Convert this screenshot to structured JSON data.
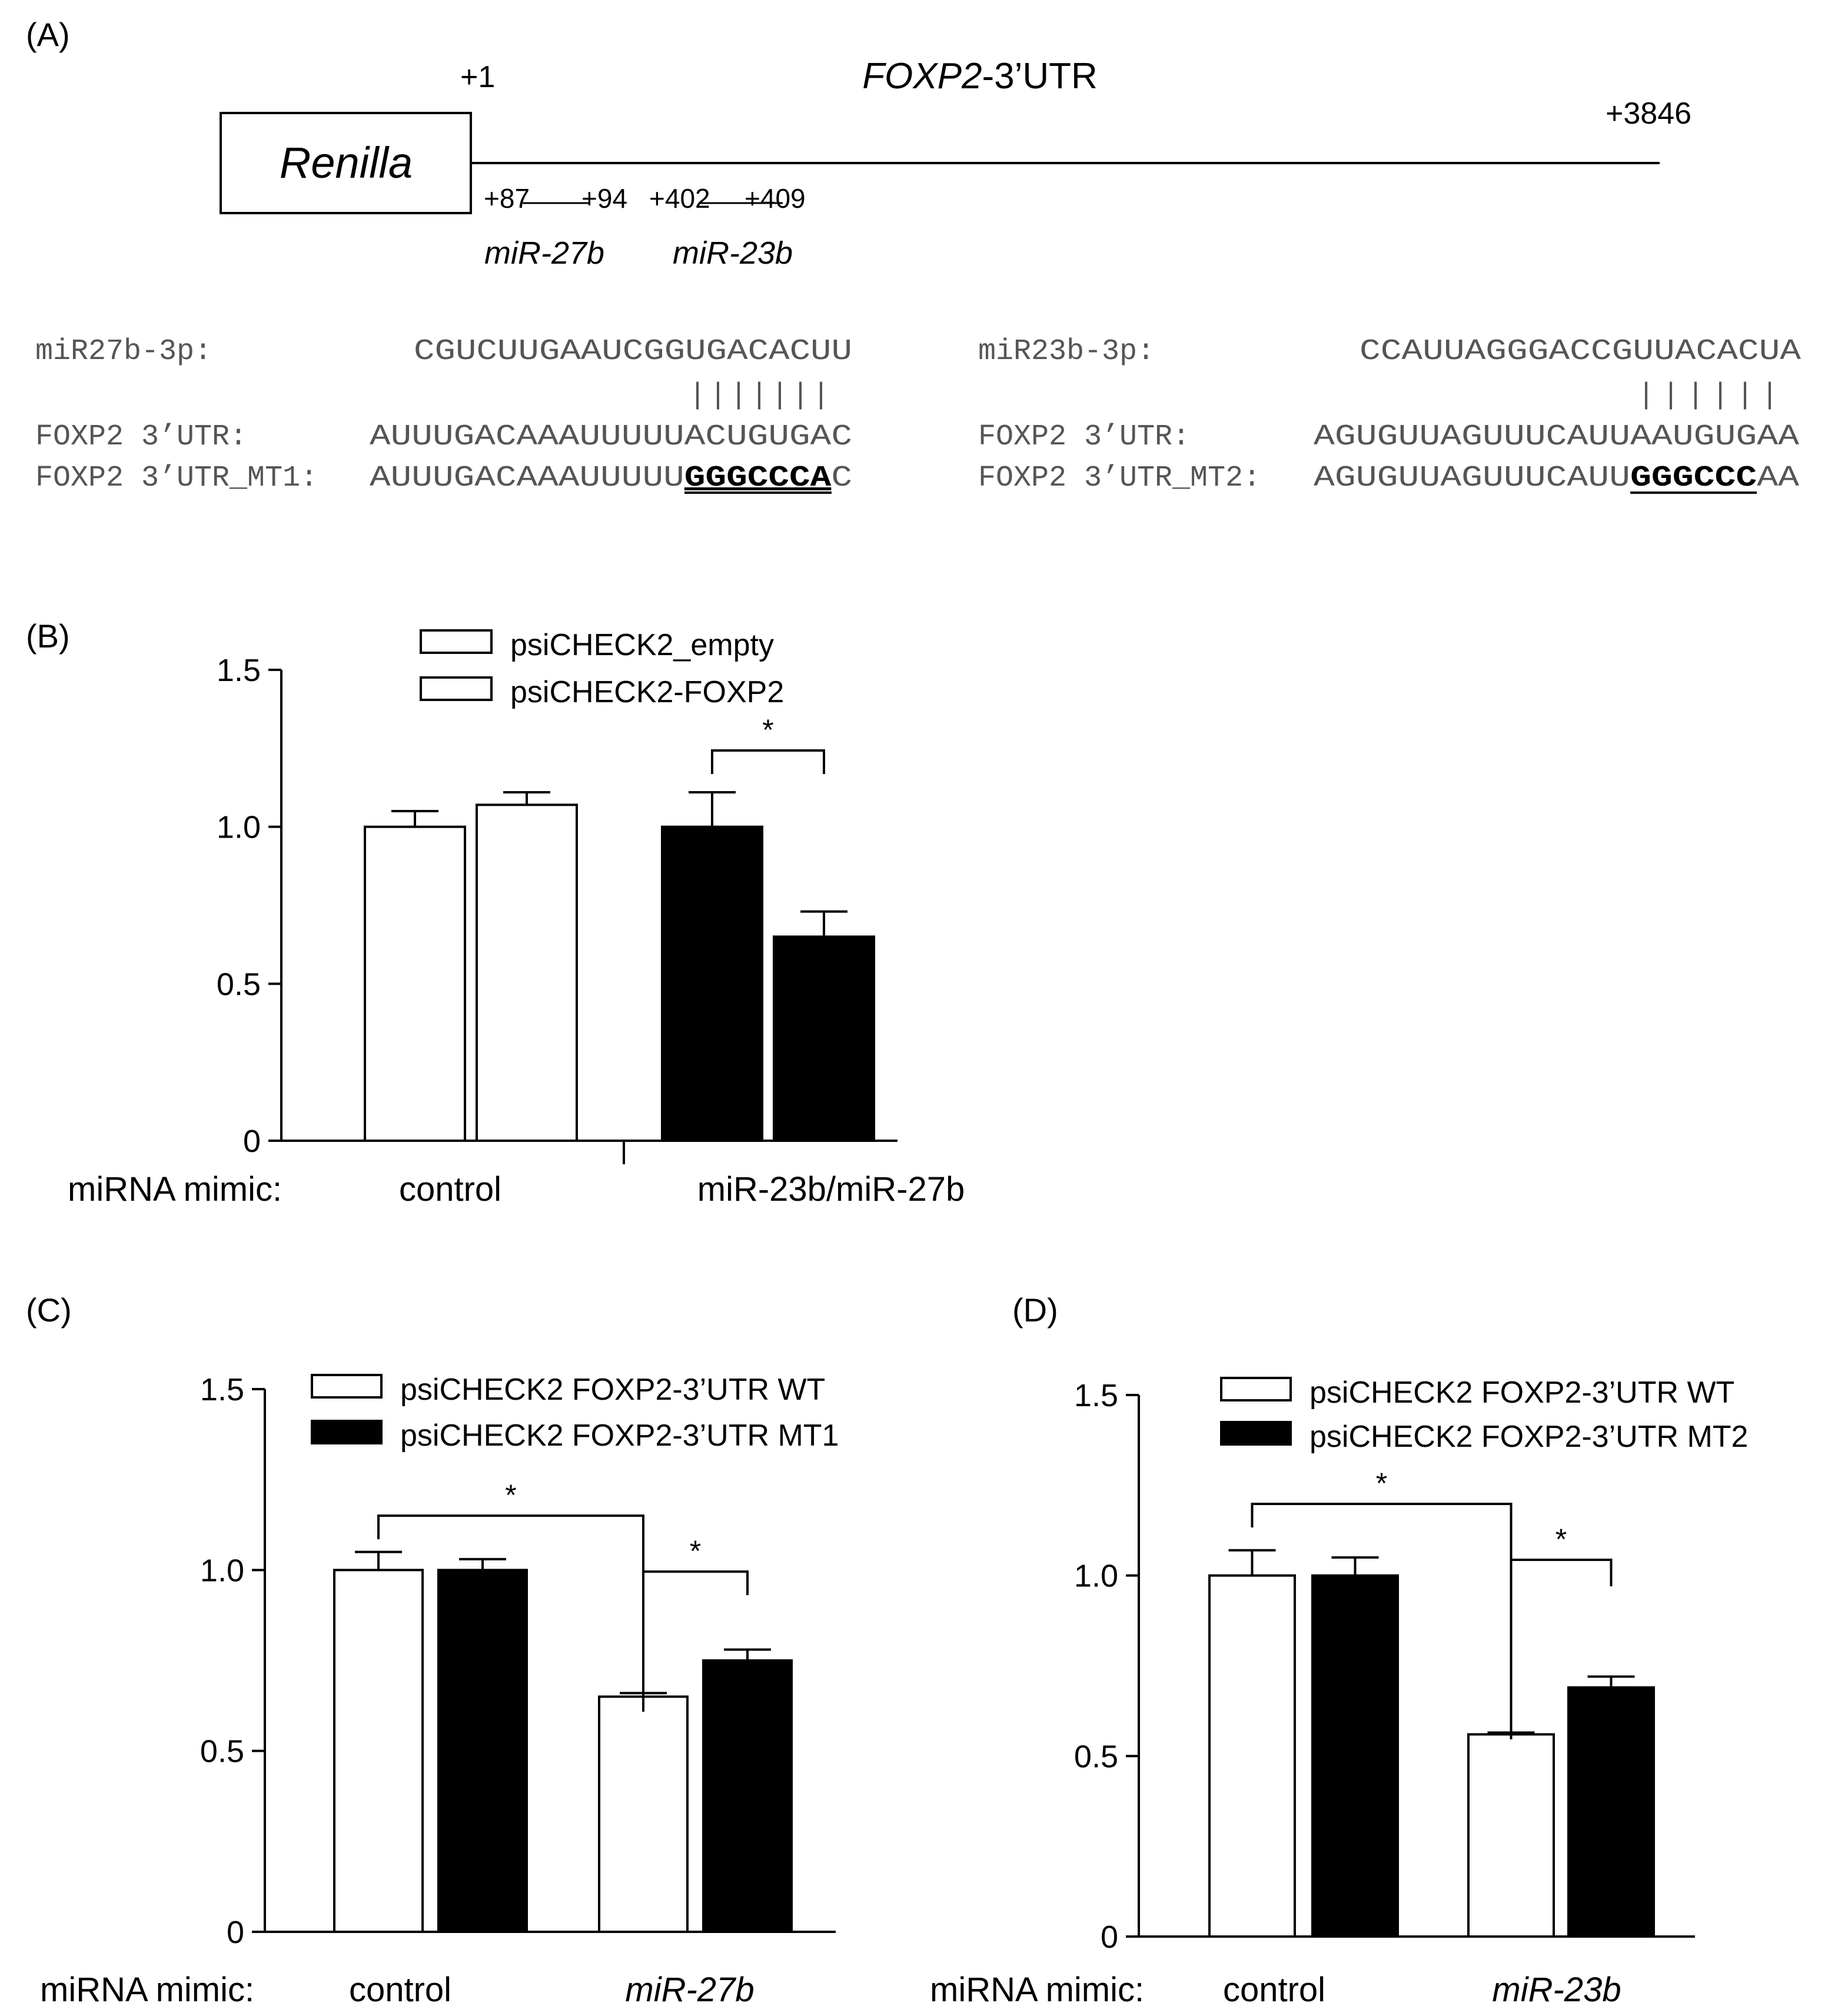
{
  "panel_labels": {
    "a": "(A)",
    "b": "(B)",
    "c": "(C)",
    "d": "(D)"
  },
  "panel_a": {
    "gene_title_italic": "FOXP2",
    "gene_title_rest": "-3’UTR",
    "renilla_label": "Renilla",
    "pos_start": "+1",
    "pos_end": "+3846",
    "site1": {
      "start": "+87",
      "end": "+94",
      "name": "miR-27b"
    },
    "site2": {
      "start": "+402",
      "end": "+409",
      "name": "miR-23b"
    },
    "seq_left": {
      "mirna_label": "miR27b-3p:",
      "mirna_seq": "CGUCUUGAAUCGGUGACACUU",
      "pairing": "|||||||",
      "wt_label": "FOXP2 3’UTR:",
      "wt_seq": "AUUUGACAAAUUUUUACUGUGAC",
      "mt_label": "FOXP2 3’UTR_MT1:",
      "mt_seq_pre": "AUUUGACAAAUUUUU",
      "mt_seq_mut": "GGGCCCA",
      "mt_seq_post": "C"
    },
    "seq_right": {
      "mirna_label": "miR23b-3p:",
      "mirna_seq": "CCAUUAGGGACCGUUACACUA",
      "pairing": "||||||",
      "wt_label": "FOXP2 3’UTR:",
      "wt_seq": "AGUGUUAGUUUCAUUAAUGUGAA",
      "mt_label": "FOXP2 3’UTR_MT2:",
      "mt_seq_pre": "AGUGUUAGUUUCAUU",
      "mt_seq_mut": "GGGCCC",
      "mt_seq_post": "AA"
    }
  },
  "chart_data": [
    {
      "panel": "B",
      "type": "bar",
      "ylim": [
        0,
        1.5
      ],
      "yticks": [
        "0",
        "0.5",
        "1.0",
        "1.5"
      ],
      "xlabel_prefix": "miRNA mimic:",
      "groups": [
        "control",
        "miR-23b/miR-27b"
      ],
      "legend": [
        "psiCHECK2_empty",
        "psiCHECK2-FOXP2"
      ],
      "bars": [
        {
          "group": "control",
          "fill": "#ffffff",
          "value": 1.0,
          "error": 0.05
        },
        {
          "group": "control",
          "fill": "#ffffff",
          "value": 1.07,
          "error": 0.04
        },
        {
          "group": "miR-23b/miR-27b",
          "fill": "#000000",
          "value": 1.0,
          "error": 0.11
        },
        {
          "group": "miR-23b/miR-27b",
          "fill": "#000000",
          "value": 0.65,
          "error": 0.08
        }
      ],
      "significance": [
        {
          "between": "bars 3-4",
          "label": "*"
        }
      ]
    },
    {
      "panel": "C",
      "type": "bar",
      "ylim": [
        0,
        1.5
      ],
      "yticks": [
        "0",
        "0.5",
        "1.0",
        "1.5"
      ],
      "xlabel_prefix": "miRNA mimic:",
      "groups": [
        "control",
        "miR-27b"
      ],
      "legend": [
        "psiCHECK2 FOXP2-3’UTR WT",
        "psiCHECK2 FOXP2-3’UTR MT1"
      ],
      "bars": [
        {
          "group": "control",
          "fill": "#ffffff",
          "value": 1.0,
          "error": 0.05
        },
        {
          "group": "control",
          "fill": "#000000",
          "value": 1.0,
          "error": 0.03
        },
        {
          "group": "miR-27b",
          "fill": "#ffffff",
          "value": 0.65,
          "error": 0.01
        },
        {
          "group": "miR-27b",
          "fill": "#000000",
          "value": 0.75,
          "error": 0.03
        }
      ],
      "significance": [
        {
          "between": "bars 1-3",
          "label": "*"
        },
        {
          "between": "bars 3-4",
          "label": "*"
        }
      ]
    },
    {
      "panel": "D",
      "type": "bar",
      "ylim": [
        0,
        1.5
      ],
      "yticks": [
        "0",
        "0.5",
        "1.0",
        "1.5"
      ],
      "xlabel_prefix": "miRNA mimic:",
      "groups": [
        "control",
        "miR-23b"
      ],
      "legend": [
        "psiCHECK2 FOXP2-3’UTR WT",
        "psiCHECK2 FOXP2-3’UTR MT2"
      ],
      "bars": [
        {
          "group": "control",
          "fill": "#ffffff",
          "value": 1.0,
          "error": 0.07
        },
        {
          "group": "control",
          "fill": "#000000",
          "value": 1.0,
          "error": 0.05
        },
        {
          "group": "miR-23b",
          "fill": "#ffffff",
          "value": 0.56,
          "error": 0.005
        },
        {
          "group": "miR-23b",
          "fill": "#000000",
          "value": 0.69,
          "error": 0.03
        }
      ],
      "significance": [
        {
          "between": "bars 1-3",
          "label": "*"
        },
        {
          "between": "bars 3-4",
          "label": "*"
        }
      ]
    }
  ]
}
